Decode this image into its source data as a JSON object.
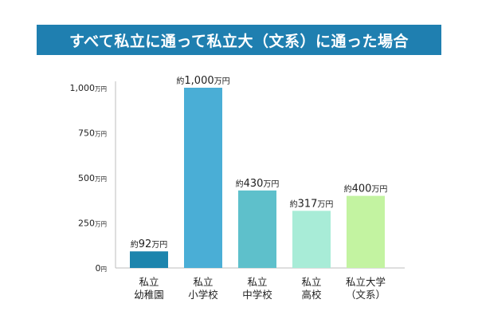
{
  "header": {
    "title": "すべて私立に通って私立大（文系）に通った場合"
  },
  "chart_data": {
    "type": "bar",
    "title": "すべて私立に通って私立大（文系）に通った場合",
    "categories": [
      [
        "私立",
        "幼稚園"
      ],
      [
        "私立",
        "小学校"
      ],
      [
        "私立",
        "中学校"
      ],
      [
        "私立",
        "高校"
      ],
      [
        "私立大学",
        "（文系）"
      ]
    ],
    "values": [
      92,
      1000,
      430,
      317,
      400
    ],
    "data_labels": [
      {
        "prefix": "約",
        "number": "92",
        "unit": "万円"
      },
      {
        "prefix": "約",
        "number": "1,000",
        "unit": "万円"
      },
      {
        "prefix": "約",
        "number": "430",
        "unit": "万円"
      },
      {
        "prefix": "約",
        "number": "317",
        "unit": "万円"
      },
      {
        "prefix": "約",
        "number": "400",
        "unit": "万円"
      }
    ],
    "bar_colors": [
      "#1d85ad",
      "#4aaed6",
      "#5ec0cb",
      "#a8ecd7",
      "#c3f3a1"
    ],
    "yticks": [
      {
        "value": 0,
        "number": "0",
        "unit": "円"
      },
      {
        "value": 250,
        "number": "250",
        "unit": "万円"
      },
      {
        "value": 500,
        "number": "500",
        "unit": "万円"
      },
      {
        "value": 750,
        "number": "750",
        "unit": "万円"
      },
      {
        "value": 1000,
        "number": "1,000",
        "unit": "万円"
      }
    ],
    "ylim": [
      0,
      1000
    ],
    "grid": false,
    "axis_color": "#bdbdbd"
  }
}
